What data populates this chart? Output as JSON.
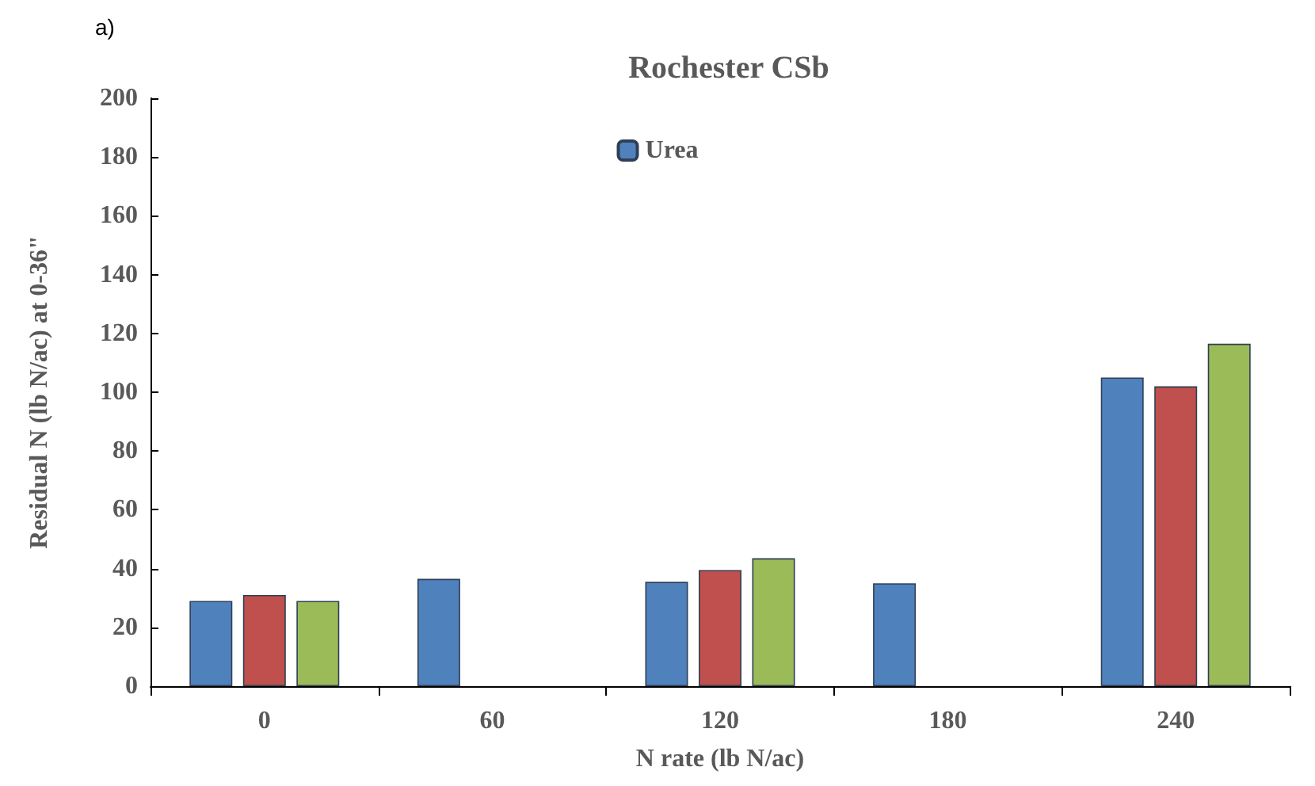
{
  "chart_data": {
    "type": "bar",
    "title": "Rochester CSb",
    "xlabel": "N rate (lb N/ac)",
    "ylabel": "Residual N (lb N/ac) at 0-36\"",
    "annotations": [
      "a)"
    ],
    "categories": [
      "0",
      "60",
      "120",
      "180",
      "240"
    ],
    "series": [
      {
        "name": "Urea",
        "color": "#4f81bd",
        "values": [
          29,
          36.5,
          35.5,
          35,
          105
        ]
      },
      {
        "color": "#c0504d",
        "values": [
          31,
          null,
          39.5,
          null,
          102
        ]
      },
      {
        "color": "#9bbb59",
        "values": [
          29,
          null,
          43.5,
          null,
          116.5
        ]
      }
    ],
    "ylim": [
      0,
      200
    ],
    "yticks": [
      0,
      20,
      40,
      60,
      80,
      100,
      120,
      140,
      160,
      180,
      200
    ],
    "grid": false,
    "legend": "top"
  }
}
